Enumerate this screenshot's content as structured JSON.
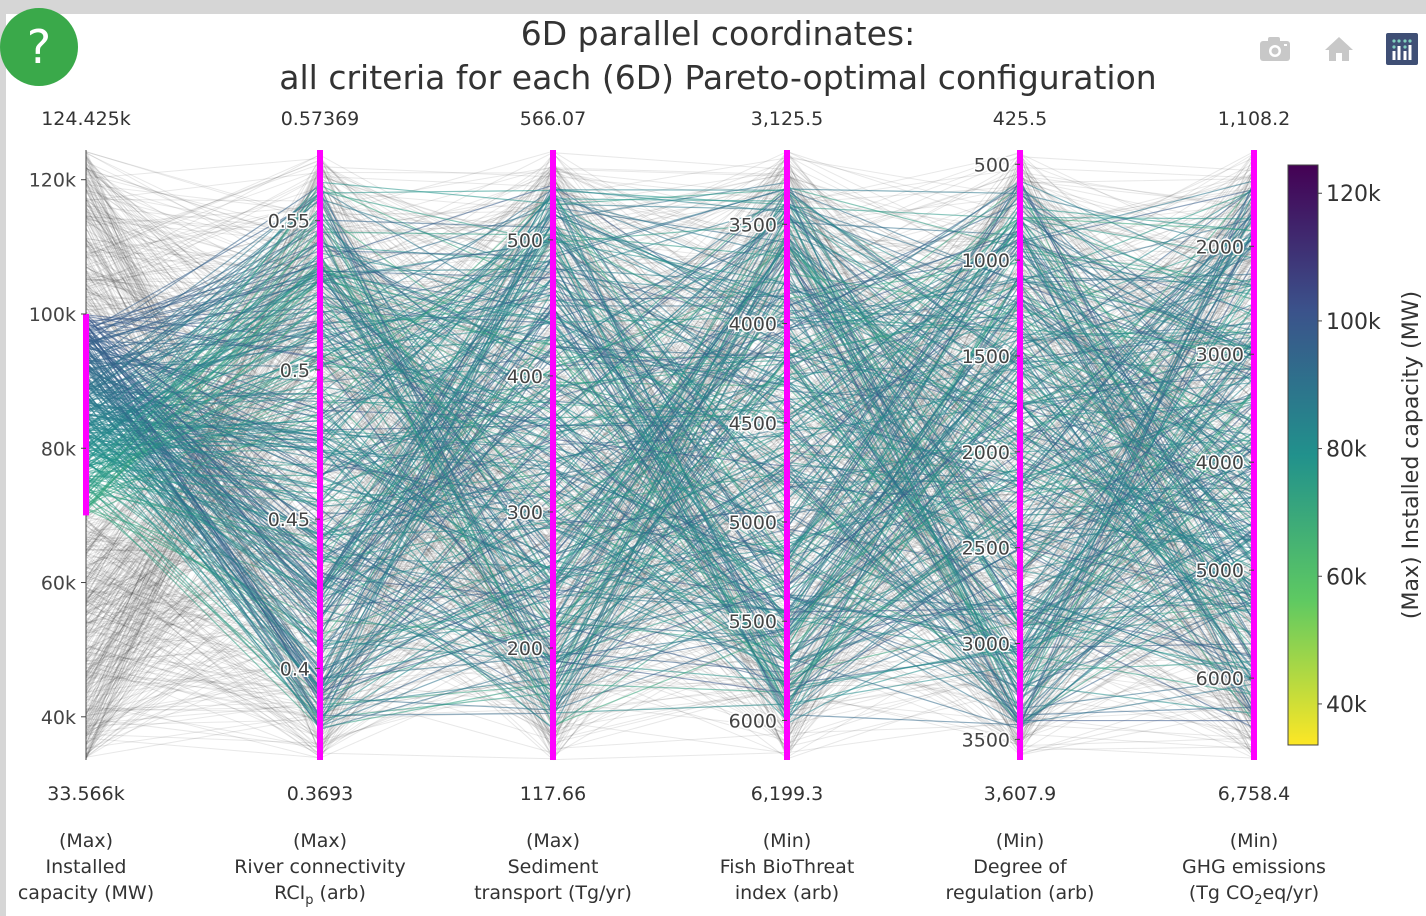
{
  "help_button": "?",
  "modebar": {
    "camera": "camera-icon",
    "home": "home-icon",
    "logo": "plotly-logo-icon"
  },
  "chart_data": {
    "type": "parcoords",
    "title": [
      "6D parallel coordinates:",
      "all criteria for each (6D) Pareto-optimal configuration"
    ],
    "line_color_by": "Installed capacity (MW)",
    "colorscale": "viridis-reversed",
    "colorbar": {
      "title": "(Max) Installed capacity (MW)",
      "ticks": [
        40000,
        60000,
        80000,
        100000,
        120000
      ],
      "tick_labels": [
        "40k",
        "60k",
        "80k",
        "100k",
        "120k"
      ],
      "range": [
        33566,
        124425
      ]
    },
    "dimensions": [
      {
        "title": [
          "(Max)",
          "Installed",
          "capacity (MW)"
        ],
        "top_label": "124.425k",
        "bottom_label": "33.566k",
        "range": [
          33566,
          124425
        ],
        "reversed": false,
        "ticks": [
          40000,
          60000,
          80000,
          100000,
          120000
        ],
        "tick_labels": [
          "40k",
          "60k",
          "80k",
          "100k",
          "120k"
        ],
        "constraint": [
          70000,
          100000
        ]
      },
      {
        "title": [
          "(Max)",
          "River connectivity",
          "RCI_p (arb)"
        ],
        "top_label": "0.57369",
        "bottom_label": "0.3693",
        "range": [
          0.3693,
          0.57369
        ],
        "reversed": false,
        "ticks": [
          0.4,
          0.45,
          0.5,
          0.55
        ],
        "tick_labels": [
          "0.4",
          "0.45",
          "0.5",
          "0.55"
        ],
        "constraint": null
      },
      {
        "title": [
          "(Max)",
          "Sediment",
          "transport (Tg/yr)"
        ],
        "top_label": "566.07",
        "bottom_label": "117.66",
        "range": [
          117.66,
          566.07
        ],
        "reversed": false,
        "ticks": [
          200,
          300,
          400,
          500
        ],
        "tick_labels": [
          "200",
          "300",
          "400",
          "500"
        ],
        "constraint": null
      },
      {
        "title": [
          "(Min)",
          "Fish BioThreat",
          "index (arb)"
        ],
        "top_label": "3,125.5",
        "bottom_label": "6,199.3",
        "range": [
          3125.5,
          6199.3
        ],
        "reversed": true,
        "ticks": [
          3500,
          4000,
          4500,
          5000,
          5500,
          6000
        ],
        "tick_labels": [
          "3500",
          "4000",
          "4500",
          "5000",
          "5500",
          "6000"
        ],
        "constraint": null
      },
      {
        "title": [
          "(Min)",
          "Degree of",
          "regulation (arb)"
        ],
        "top_label": "425.5",
        "bottom_label": "3,607.9",
        "range": [
          425.5,
          3607.9
        ],
        "reversed": true,
        "ticks": [
          500,
          1000,
          1500,
          2000,
          2500,
          3000,
          3500
        ],
        "tick_labels": [
          "500",
          "1000",
          "1500",
          "2000",
          "2500",
          "3000",
          "3500"
        ],
        "constraint": null
      },
      {
        "title": [
          "(Min)",
          "GHG emissions",
          "(Tg CO2eq/yr)"
        ],
        "top_label": "1,108.2",
        "bottom_label": "6,758.4",
        "range": [
          1108.2,
          6758.4
        ],
        "reversed": true,
        "ticks": [
          2000,
          3000,
          4000,
          5000,
          6000
        ],
        "tick_labels": [
          "2000",
          "3000",
          "4000",
          "5000",
          "6000"
        ],
        "constraint": null
      }
    ],
    "constraint_color": "#ff00ff",
    "unselected_color": "#444444"
  }
}
